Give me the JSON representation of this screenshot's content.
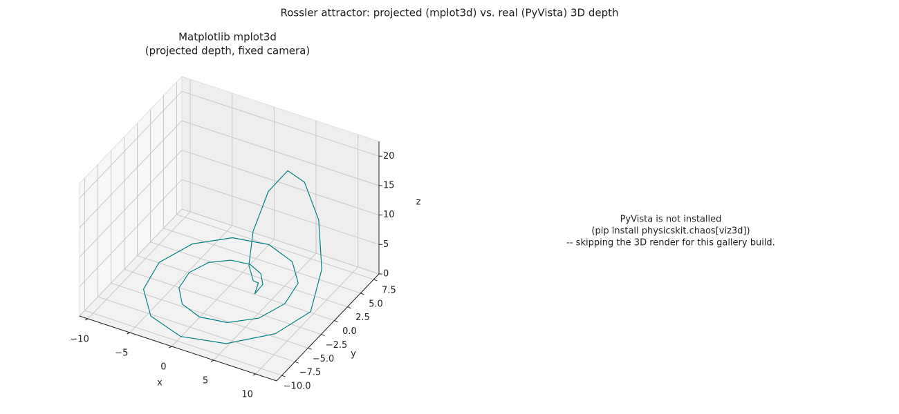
{
  "chart_data": {
    "type": "line3d",
    "title": "Rossler attractor: projected (mplot3d) vs. real (PyVista) 3D depth",
    "subplot_title": [
      "Matplotlib mplot3d",
      "(projected depth, fixed camera)"
    ],
    "xlabel": "x",
    "ylabel": "y",
    "zlabel": "z",
    "color": "#008080",
    "grid": true,
    "x": [
      3,
      2.9,
      1.8,
      0,
      -2.1,
      -3.9,
      -4.8,
      -4.4,
      -2.7,
      0,
      3,
      5.5,
      6.6,
      6.0,
      3.6,
      0,
      -3.9,
      -7.0,
      -8.4,
      -7.5,
      -4.5,
      0,
      4.8,
      8.6,
      10.6,
      11,
      10,
      8,
      6,
      4,
      2.5,
      2,
      2.2,
      2.5,
      3
    ],
    "y": [
      0,
      1.7,
      3.1,
      3.9,
      3.6,
      2.3,
      0,
      -2.6,
      -4.7,
      -5.7,
      -5.2,
      -3.2,
      0,
      3.5,
      6.2,
      7.5,
      6.8,
      4.1,
      0,
      -4.4,
      -7.8,
      -9.3,
      -8.3,
      -5.0,
      -1.5,
      0,
      1,
      1.5,
      1.5,
      1,
      0.5,
      0.5,
      1,
      1.5,
      0
    ],
    "z": [
      0.05,
      0.05,
      0.05,
      0.05,
      0.05,
      0.05,
      0.05,
      0.05,
      0.05,
      0.05,
      0.05,
      0.1,
      0.1,
      0.05,
      0.05,
      0.05,
      0.05,
      0.05,
      0.05,
      0.05,
      0.05,
      0.1,
      0.2,
      0.6,
      2,
      8,
      15,
      20,
      21,
      17,
      10,
      4,
      1,
      0.3,
      0.05
    ],
    "xlim": [
      -11,
      12.5
    ],
    "ylim": [
      -11,
      8.5
    ],
    "zlim": [
      0,
      22.5
    ],
    "xticks": [
      {
        "value": -10,
        "label": "−10"
      },
      {
        "value": -5,
        "label": "−5"
      },
      0,
      5,
      10
    ],
    "yticks": [
      {
        "value": -10,
        "label": "−10.0"
      },
      {
        "value": -7.5,
        "label": "−7.5"
      },
      {
        "value": -5,
        "label": "−5.0"
      },
      {
        "value": -2.5,
        "label": "−2.5"
      },
      {
        "value": 0,
        "label": "0.0"
      },
      {
        "value": 2.5,
        "label": "2.5"
      },
      {
        "value": 5,
        "label": "5.0"
      },
      {
        "value": 7.5,
        "label": "7.5"
      }
    ],
    "zticks": [
      0,
      5,
      10,
      15,
      20
    ]
  },
  "message": [
    "PyVista is not installed",
    "(pip install physicskit.chaos[viz3d])",
    "-- skipping the 3D render for this gallery build."
  ]
}
